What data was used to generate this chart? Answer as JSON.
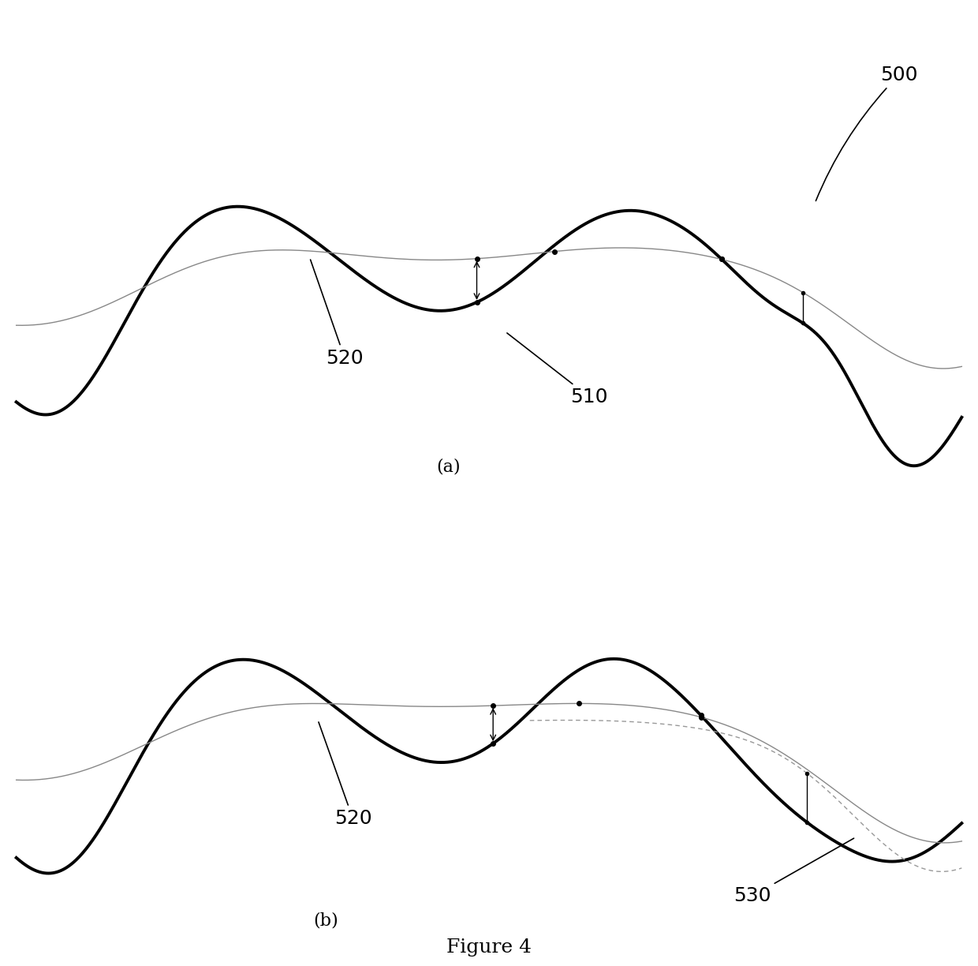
{
  "fig_width": 12.4,
  "fig_height": 12.24,
  "background_color": "#ffffff",
  "line_color_thick": "#000000",
  "line_color_thin": "#888888",
  "line_color_dotted": "#999999",
  "dot_color": "#000000",
  "label_500": "500",
  "label_510": "510",
  "label_520a": "520",
  "label_520b": "520",
  "label_530": "530",
  "caption_a": "(a)",
  "caption_b": "(b)",
  "figure_label": "Figure 4",
  "thick_lw": 2.8,
  "thin_lw": 1.0,
  "annotation_fontsize": 18,
  "caption_fontsize": 16,
  "figure_fontsize": 18
}
